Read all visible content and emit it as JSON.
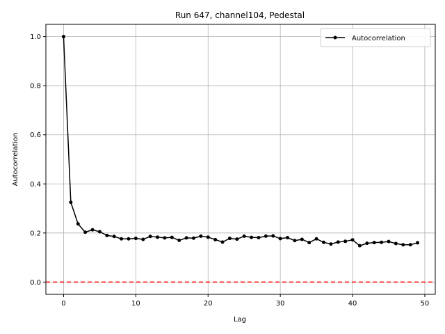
{
  "chart_data": {
    "type": "line",
    "title": "Run 647, channel104, Pedestal",
    "xlabel": "Lag",
    "ylabel": "Autocorrelation",
    "xlim": [
      -2.45,
      51.45
    ],
    "ylim": [
      -0.05,
      1.05
    ],
    "xticks": [
      0,
      10,
      20,
      30,
      40,
      50
    ],
    "yticks": [
      0.0,
      0.2,
      0.4,
      0.6,
      0.8,
      1.0
    ],
    "xtick_labels": [
      "0",
      "10",
      "20",
      "30",
      "40",
      "50"
    ],
    "ytick_labels": [
      "0.0",
      "0.2",
      "0.4",
      "0.6",
      "0.8",
      "1.0"
    ],
    "grid": true,
    "legend": {
      "position": "top-right",
      "entries": [
        "Autocorrelation"
      ]
    },
    "series": [
      {
        "name": "Autocorrelation",
        "color": "#000000",
        "marker": "circle",
        "x": [
          0,
          1,
          2,
          3,
          4,
          5,
          6,
          7,
          8,
          9,
          10,
          11,
          12,
          13,
          14,
          15,
          16,
          17,
          18,
          19,
          20,
          21,
          22,
          23,
          24,
          25,
          26,
          27,
          28,
          29,
          30,
          31,
          32,
          33,
          34,
          35,
          36,
          37,
          38,
          39,
          40,
          41,
          42,
          43,
          44,
          45,
          46,
          47,
          48,
          49
        ],
        "y": [
          1.0,
          0.325,
          0.237,
          0.203,
          0.213,
          0.205,
          0.19,
          0.186,
          0.176,
          0.176,
          0.178,
          0.174,
          0.186,
          0.183,
          0.18,
          0.182,
          0.17,
          0.18,
          0.179,
          0.187,
          0.183,
          0.173,
          0.163,
          0.178,
          0.175,
          0.187,
          0.182,
          0.181,
          0.187,
          0.188,
          0.177,
          0.181,
          0.169,
          0.174,
          0.161,
          0.176,
          0.162,
          0.155,
          0.163,
          0.166,
          0.172,
          0.148,
          0.158,
          0.161,
          0.162,
          0.165,
          0.157,
          0.152,
          0.152,
          0.16
        ]
      }
    ],
    "reference_line": {
      "y": 0.0,
      "color": "#ff0000",
      "style": "dashed"
    }
  }
}
